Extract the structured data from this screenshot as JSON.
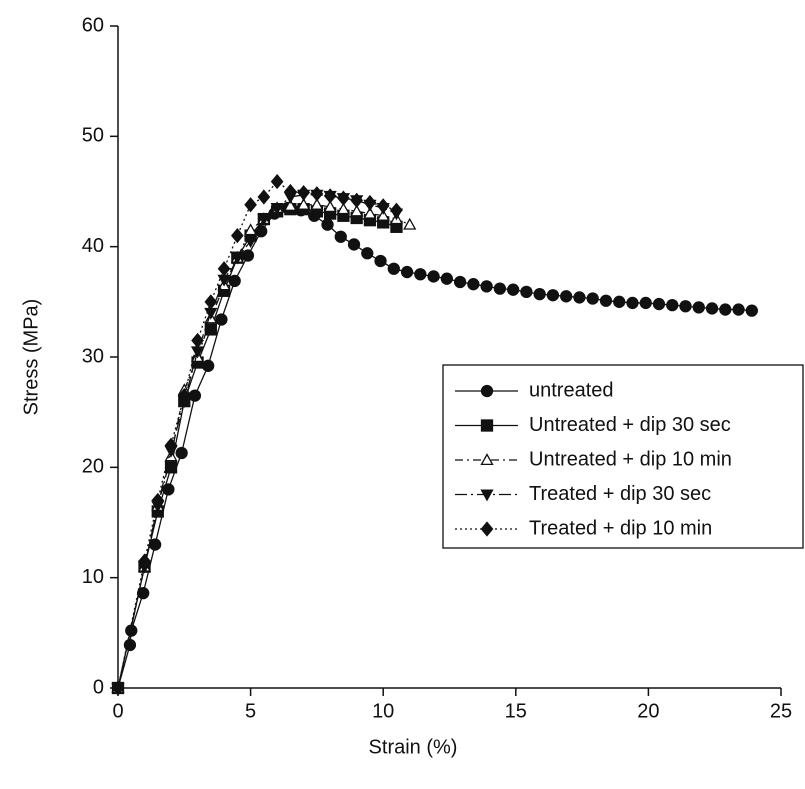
{
  "chart_data": {
    "type": "line",
    "x_label": "Strain (%)",
    "y_label": "Stress (MPa)",
    "xlim": [
      0,
      25
    ],
    "xticks": [
      0,
      5,
      10,
      15,
      20,
      25
    ],
    "ylim": [
      0,
      60
    ],
    "yticks": [
      0,
      10,
      20,
      30,
      40,
      50,
      60
    ],
    "grid": false,
    "legend_position": "right",
    "series": [
      {
        "name": "untreated",
        "color": "#111111",
        "marker": "circle",
        "dash": "solid",
        "x": [
          0,
          0.45,
          0.5,
          0.95,
          1.4,
          1.9,
          2.4,
          2.9,
          3.4,
          3.9,
          4.4,
          4.9,
          5.4,
          5.9,
          6.4,
          6.9,
          7.4,
          7.9,
          8.4,
          8.9,
          9.4,
          9.9,
          10.4,
          10.9,
          11.4,
          11.9,
          12.4,
          12.9,
          13.4,
          13.9,
          14.4,
          14.9,
          15.4,
          15.9,
          16.4,
          16.9,
          17.4,
          17.9,
          18.4,
          18.9,
          19.4,
          19.9,
          20.4,
          20.9,
          21.4,
          21.9,
          22.4,
          22.9,
          23.4,
          23.9
        ],
        "values": [
          0,
          3.9,
          5.2,
          8.6,
          13,
          18,
          21.3,
          26.5,
          29.2,
          33.4,
          36.9,
          39.2,
          41.4,
          43,
          43.5,
          43.3,
          42.8,
          42,
          40.9,
          40.2,
          39.4,
          38.7,
          38,
          37.7,
          37.5,
          37.3,
          37.1,
          36.8,
          36.6,
          36.4,
          36.2,
          36.1,
          35.9,
          35.7,
          35.6,
          35.5,
          35.4,
          35.3,
          35.1,
          35,
          34.9,
          34.9,
          34.8,
          34.7,
          34.6,
          34.5,
          34.4,
          34.3,
          34.3,
          34.2
        ]
      },
      {
        "name": "Untreated + dip 30 sec",
        "color": "#111111",
        "marker": "square",
        "dash": "solid",
        "x": [
          0,
          1,
          1.5,
          2,
          2.5,
          3,
          3.5,
          4,
          4.5,
          5,
          5.5,
          6,
          6.5,
          7,
          7.5,
          8,
          8.5,
          9,
          9.5,
          10,
          10.5
        ],
        "values": [
          0,
          11,
          16,
          20,
          26,
          29.5,
          32.5,
          36,
          39,
          41,
          42.5,
          43.2,
          43.4,
          43.4,
          43.2,
          43,
          42.8,
          42.6,
          42.4,
          42.2,
          41.8
        ]
      },
      {
        "name": "Untreated + dip 10 min",
        "color": "#111111",
        "marker": "triangle-open",
        "dash": "dashdot",
        "x": [
          0,
          1,
          1.5,
          2,
          2.5,
          3,
          3.5,
          4,
          4.5,
          5,
          5.5,
          6,
          6.5,
          7,
          7.5,
          8,
          8.5,
          9,
          9.5,
          10,
          10.5,
          11
        ],
        "values": [
          0,
          11,
          16.5,
          21,
          27,
          30,
          33.5,
          36.5,
          39,
          41.5,
          42.5,
          43.5,
          43.7,
          43.8,
          43.8,
          43.6,
          43.4,
          43.2,
          43,
          42.8,
          42.5,
          42
        ]
      },
      {
        "name": "Treated + dip 30 sec",
        "color": "#111111",
        "marker": "triangle-down",
        "dash": "longdashdot",
        "x": [
          0,
          1,
          1.5,
          2,
          2.5,
          3,
          3.5,
          4,
          4.5,
          5,
          5.5,
          6,
          6.5,
          7,
          7.5,
          8,
          8.5,
          9,
          9.5,
          10,
          10.5
        ],
        "values": [
          0,
          11,
          16.5,
          21.5,
          26,
          30.5,
          34,
          37,
          39,
          40.5,
          42.5,
          43.5,
          44.5,
          44.7,
          44.7,
          44.6,
          44.4,
          44.2,
          43.8,
          43.5,
          43
        ]
      },
      {
        "name": "Treated + dip 10 min",
        "color": "#111111",
        "marker": "diamond",
        "dash": "dotted",
        "x": [
          0,
          1,
          1.5,
          2,
          2.5,
          3,
          3.5,
          4,
          4.5,
          5,
          5.5,
          6,
          6.5,
          7,
          7.5,
          8,
          8.5,
          9,
          9.5,
          10,
          10.5
        ],
        "values": [
          0,
          11.5,
          17,
          22,
          26.5,
          31.5,
          35,
          38,
          41,
          43.8,
          44.5,
          45.9,
          45,
          44.9,
          44.8,
          44.6,
          44.4,
          44.2,
          44,
          43.7,
          43.3
        ]
      }
    ]
  }
}
